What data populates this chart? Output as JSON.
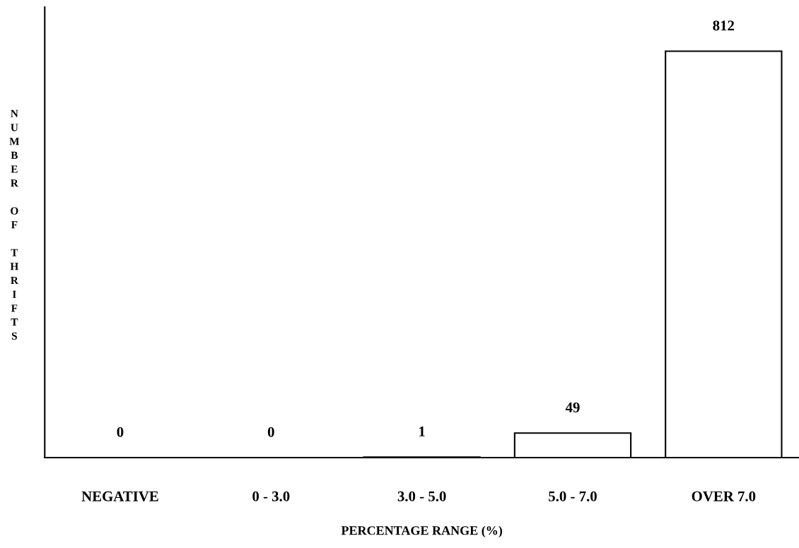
{
  "chart_data": {
    "type": "bar",
    "categories": [
      "NEGATIVE",
      "0 - 3.0",
      "3.0 - 5.0",
      "5.0 - 7.0",
      "OVER 7.0"
    ],
    "values": [
      0,
      0,
      1,
      49,
      812
    ],
    "color": "#ffffff",
    "xlabel": "PERCENTAGE RANGE (%)",
    "ylabel": "NUMBER OF THRIFTS",
    "ylim": [
      0,
      900
    ],
    "data_labels": true,
    "tick_labels": "x",
    "grid": false,
    "legend": false
  }
}
